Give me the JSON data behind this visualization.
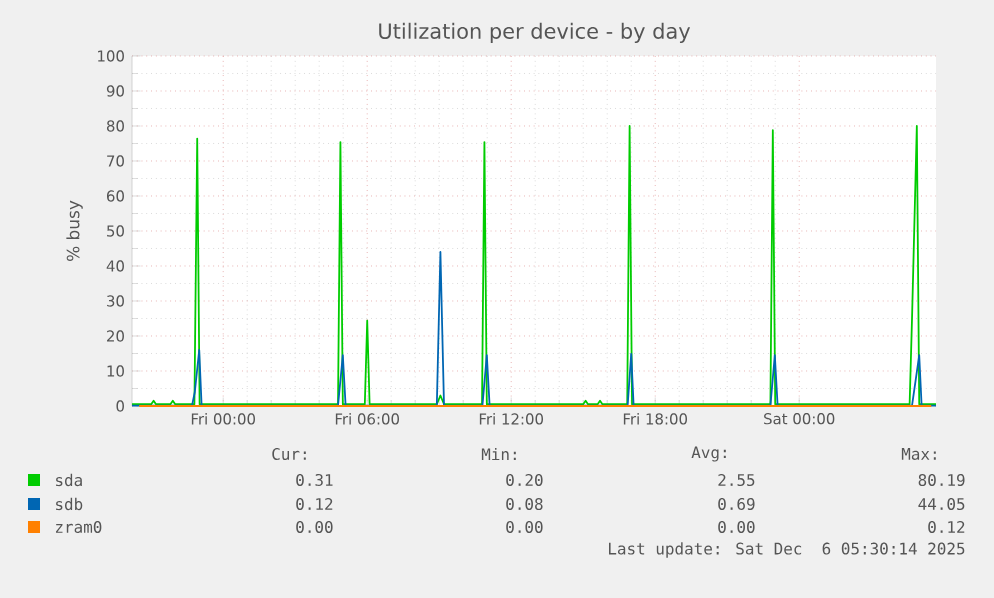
{
  "chart_data": {
    "type": "line",
    "title": "Utilization per device - by day",
    "ylabel": "% busy",
    "xlim": [
      "2025-12-04T20:12",
      "2025-12-06T05:42"
    ],
    "ylim": [
      0,
      100
    ],
    "xticks": [
      {
        "value": "2025-12-05T00:00",
        "label": "Fri 00:00"
      },
      {
        "value": "2025-12-05T06:00",
        "label": "Fri 06:00"
      },
      {
        "value": "2025-12-05T12:00",
        "label": "Fri 12:00"
      },
      {
        "value": "2025-12-05T18:00",
        "label": "Fri 18:00"
      },
      {
        "value": "2025-12-06T00:00",
        "label": "Sat 00:00"
      }
    ],
    "yticks": [
      0,
      10,
      20,
      30,
      40,
      50,
      60,
      70,
      80,
      90,
      100
    ],
    "grid": true,
    "legend": "bottom",
    "series": [
      {
        "name": "sda",
        "color": "#00cc00",
        "x": [
          "2025-12-04T20:12",
          "2025-12-04T21:00",
          "2025-12-04T21:06",
          "2025-12-04T21:12",
          "2025-12-04T21:48",
          "2025-12-04T21:54",
          "2025-12-04T22:00",
          "2025-12-04T22:48",
          "2025-12-04T22:55",
          "2025-12-04T23:01",
          "2025-12-05T00:30",
          "2025-12-05T02:00",
          "2025-12-05T04:47",
          "2025-12-05T04:53",
          "2025-12-05T04:59",
          "2025-12-05T05:54",
          "2025-12-05T06:00",
          "2025-12-05T06:06",
          "2025-12-05T08:54",
          "2025-12-05T09:03",
          "2025-12-05T09:12",
          "2025-12-05T10:47",
          "2025-12-05T10:53",
          "2025-12-05T10:59",
          "2025-12-05T15:00",
          "2025-12-05T15:06",
          "2025-12-05T15:12",
          "2025-12-05T15:36",
          "2025-12-05T15:42",
          "2025-12-05T15:48",
          "2025-12-05T16:50",
          "2025-12-05T16:56",
          "2025-12-05T17:02",
          "2025-12-05T22:48",
          "2025-12-05T22:54",
          "2025-12-05T23:00",
          "2025-12-06T04:36",
          "2025-12-06T04:42",
          "2025-12-06T04:54",
          "2025-12-06T05:00",
          "2025-12-06T05:42"
        ],
        "values": [
          0.5,
          0.5,
          1.5,
          0.5,
          0.5,
          1.5,
          0.5,
          0.5,
          76.4,
          0.5,
          0.5,
          0.5,
          0.5,
          75.4,
          0.5,
          0.5,
          24.4,
          0.5,
          0.5,
          3,
          0.5,
          0.5,
          75.4,
          0.5,
          0.5,
          1.5,
          0.5,
          0.5,
          1.5,
          0.5,
          0.5,
          80,
          0.5,
          0.5,
          78.8,
          0.5,
          0.5,
          25,
          80,
          0.5,
          0.5
        ]
      },
      {
        "name": "sdb",
        "color": "#0066b3",
        "x": [
          "2025-12-04T20:12",
          "2025-12-04T22:42",
          "2025-12-04T22:49",
          "2025-12-04T23:00",
          "2025-12-04T23:06",
          "2025-12-05T04:47",
          "2025-12-05T04:59",
          "2025-12-05T05:06",
          "2025-12-05T08:54",
          "2025-12-05T09:03",
          "2025-12-05T09:12",
          "2025-12-05T10:48",
          "2025-12-05T10:59",
          "2025-12-05T11:06",
          "2025-12-05T16:51",
          "2025-12-05T17:00",
          "2025-12-05T17:06",
          "2025-12-05T22:48",
          "2025-12-05T22:59",
          "2025-12-05T23:06",
          "2025-12-06T04:42",
          "2025-12-06T05:00",
          "2025-12-06T05:06",
          "2025-12-06T05:42"
        ],
        "values": [
          0.1,
          0.1,
          4,
          16,
          0.1,
          0.1,
          14.5,
          0.1,
          0.1,
          44,
          0.1,
          0.1,
          14.5,
          0.1,
          0.1,
          14.9,
          0.1,
          0.1,
          14.5,
          0.1,
          0.1,
          14.5,
          0.1,
          0.1
        ]
      },
      {
        "name": "zram0",
        "color": "#ff8000",
        "x": [
          "2025-12-04T20:30",
          "2025-12-06T05:30"
        ],
        "values": [
          0,
          0
        ]
      }
    ],
    "annotations": [
      "Cur:",
      "Min:",
      "Avg:",
      "Max:",
      "0.31",
      "0.20",
      "2.55",
      "80.19",
      "0.12",
      "0.08",
      "0.69",
      "44.05",
      "0.00",
      "0.00",
      "0.00",
      "0.12",
      "Last update: Sat Dec  6 05:30:14 2025"
    ]
  }
}
